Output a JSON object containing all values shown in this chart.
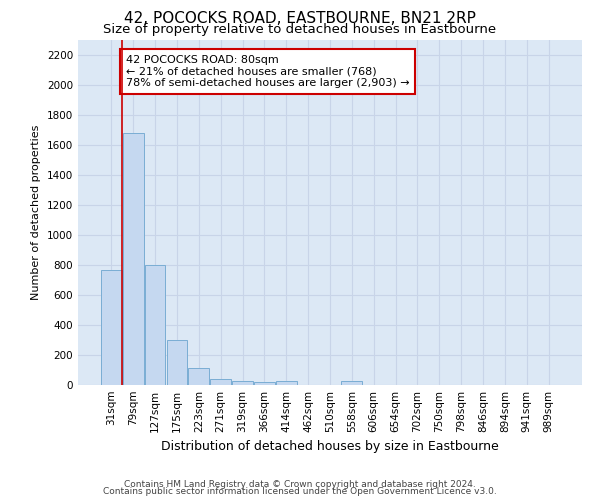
{
  "title": "42, POCOCKS ROAD, EASTBOURNE, BN21 2RP",
  "subtitle": "Size of property relative to detached houses in Eastbourne",
  "xlabel": "Distribution of detached houses by size in Eastbourne",
  "ylabel": "Number of detached properties",
  "footer_line1": "Contains HM Land Registry data © Crown copyright and database right 2024.",
  "footer_line2": "Contains public sector information licensed under the Open Government Licence v3.0.",
  "categories": [
    "31sqm",
    "79sqm",
    "127sqm",
    "175sqm",
    "223sqm",
    "271sqm",
    "319sqm",
    "366sqm",
    "414sqm",
    "462sqm",
    "510sqm",
    "558sqm",
    "606sqm",
    "654sqm",
    "702sqm",
    "750sqm",
    "798sqm",
    "846sqm",
    "894sqm",
    "941sqm",
    "989sqm"
  ],
  "values": [
    770,
    1680,
    800,
    300,
    115,
    40,
    25,
    20,
    30,
    0,
    0,
    30,
    0,
    0,
    0,
    0,
    0,
    0,
    0,
    0,
    0
  ],
  "bar_color": "#c5d8f0",
  "bar_edge_color": "#7aadd4",
  "property_line_color": "#cc0000",
  "property_line_xbin": 1,
  "annotation_text": "42 POCOCKS ROAD: 80sqm\n← 21% of detached houses are smaller (768)\n78% of semi-detached houses are larger (2,903) →",
  "annotation_box_facecolor": "#ffffff",
  "annotation_box_edgecolor": "#cc0000",
  "ylim": [
    0,
    2300
  ],
  "yticks": [
    0,
    200,
    400,
    600,
    800,
    1000,
    1200,
    1400,
    1600,
    1800,
    2000,
    2200
  ],
  "grid_color": "#c8d4e8",
  "background_color": "#dce8f5",
  "title_fontsize": 11,
  "subtitle_fontsize": 9.5,
  "annotation_fontsize": 8,
  "ylabel_fontsize": 8,
  "xlabel_fontsize": 9,
  "tick_fontsize": 7.5,
  "footer_fontsize": 6.5
}
